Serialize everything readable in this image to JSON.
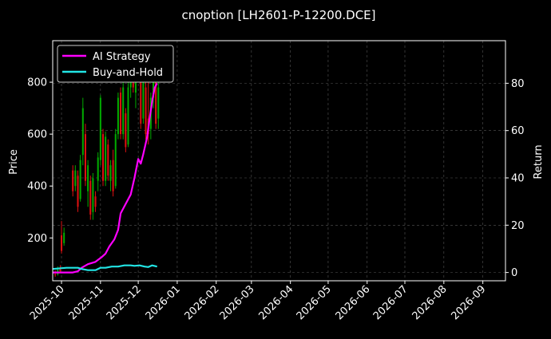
{
  "chart_data": {
    "type": "line",
    "title": "cnoption [LH2601-P-12200.DCE]",
    "xlabel": "",
    "ylabel": "Price",
    "y2label": "Return",
    "background": "#000000",
    "grid": true,
    "xlim": [
      "2025-09-24",
      "2026-09-19"
    ],
    "ylim": [
      35,
      960
    ],
    "y2lim": [
      -3.5,
      98
    ],
    "x_ticks": [
      "2025-10",
      "2025-11",
      "2025-12",
      "2026-01",
      "2026-02",
      "2026-03",
      "2026-04",
      "2026-05",
      "2026-06",
      "2026-07",
      "2026-08",
      "2026-09"
    ],
    "y_ticks": [
      200,
      400,
      600,
      800
    ],
    "y2_ticks": [
      0,
      20,
      40,
      60,
      80
    ],
    "legend": {
      "position": "top-left"
    },
    "colors": {
      "up": "#00aa00",
      "down": "#dd1111",
      "strategy": "#ff00ff",
      "buy_hold": "#22e5e5"
    },
    "series": [
      {
        "name": "AI Strategy",
        "axis": "right",
        "color": "#ff00ff",
        "points": [
          [
            "2025-09-24",
            0
          ],
          [
            "2025-10-01",
            0
          ],
          [
            "2025-10-10",
            0
          ],
          [
            "2025-10-14",
            0.5
          ],
          [
            "2025-10-17",
            2
          ],
          [
            "2025-10-22",
            3.5
          ],
          [
            "2025-10-28",
            4.5
          ],
          [
            "2025-11-02",
            6.5
          ],
          [
            "2025-11-05",
            8
          ],
          [
            "2025-11-08",
            11
          ],
          [
            "2025-11-12",
            14
          ],
          [
            "2025-11-15",
            18
          ],
          [
            "2025-11-17",
            25
          ],
          [
            "2025-11-20",
            28
          ],
          [
            "2025-11-25",
            33
          ],
          [
            "2025-11-28",
            40
          ],
          [
            "2025-12-01",
            48
          ],
          [
            "2025-12-03",
            46
          ],
          [
            "2025-12-05",
            50
          ],
          [
            "2025-12-08",
            57
          ],
          [
            "2025-12-10",
            65
          ],
          [
            "2025-12-12",
            72
          ],
          [
            "2025-12-14",
            78
          ],
          [
            "2025-12-16",
            80
          ]
        ]
      },
      {
        "name": "Buy-and-Hold",
        "axis": "right",
        "color": "#22e5e5",
        "points": [
          [
            "2025-09-24",
            1.5
          ],
          [
            "2025-10-05",
            2
          ],
          [
            "2025-10-14",
            2
          ],
          [
            "2025-10-17",
            1.5
          ],
          [
            "2025-10-22",
            1
          ],
          [
            "2025-10-28",
            1
          ],
          [
            "2025-11-01",
            2
          ],
          [
            "2025-11-05",
            2
          ],
          [
            "2025-11-10",
            2.5
          ],
          [
            "2025-11-15",
            2.5
          ],
          [
            "2025-11-20",
            3
          ],
          [
            "2025-11-25",
            3
          ],
          [
            "2025-11-28",
            2.8
          ],
          [
            "2025-12-02",
            3
          ],
          [
            "2025-12-06",
            2.5
          ],
          [
            "2025-12-09",
            2.3
          ],
          [
            "2025-12-12",
            3
          ],
          [
            "2025-12-16",
            2.5
          ]
        ]
      }
    ],
    "candles": [
      {
        "date": "2025-09-26",
        "open": 60,
        "high": 75,
        "low": 50,
        "close": 58
      },
      {
        "date": "2025-09-28",
        "open": 60,
        "high": 90,
        "low": 55,
        "close": 78
      },
      {
        "date": "2025-09-30",
        "open": 80,
        "high": 95,
        "low": 65,
        "close": 72
      },
      {
        "date": "2025-10-01",
        "open": 210,
        "high": 265,
        "low": 140,
        "close": 150
      },
      {
        "date": "2025-10-03",
        "open": 180,
        "high": 240,
        "low": 170,
        "close": 220
      },
      {
        "date": "2025-10-10",
        "open": 460,
        "high": 480,
        "low": 360,
        "close": 380
      },
      {
        "date": "2025-10-12",
        "open": 400,
        "high": 480,
        "low": 380,
        "close": 460
      },
      {
        "date": "2025-10-14",
        "open": 440,
        "high": 460,
        "low": 300,
        "close": 320
      },
      {
        "date": "2025-10-16",
        "open": 350,
        "high": 520,
        "low": 340,
        "close": 500
      },
      {
        "date": "2025-10-18",
        "open": 520,
        "high": 740,
        "low": 480,
        "close": 700
      },
      {
        "date": "2025-10-20",
        "open": 600,
        "high": 640,
        "low": 400,
        "close": 420
      },
      {
        "date": "2025-10-22",
        "open": 380,
        "high": 500,
        "low": 320,
        "close": 480
      },
      {
        "date": "2025-10-24",
        "open": 420,
        "high": 440,
        "low": 270,
        "close": 290
      },
      {
        "date": "2025-10-26",
        "open": 300,
        "high": 450,
        "low": 270,
        "close": 430
      },
      {
        "date": "2025-10-28",
        "open": 360,
        "high": 380,
        "low": 300,
        "close": 320
      },
      {
        "date": "2025-10-30",
        "open": 420,
        "high": 530,
        "low": 380,
        "close": 510
      },
      {
        "date": "2025-11-01",
        "open": 500,
        "high": 750,
        "low": 480,
        "close": 740
      },
      {
        "date": "2025-11-03",
        "open": 600,
        "high": 620,
        "low": 400,
        "close": 420
      },
      {
        "date": "2025-11-05",
        "open": 420,
        "high": 610,
        "low": 400,
        "close": 590
      },
      {
        "date": "2025-11-07",
        "open": 560,
        "high": 580,
        "low": 420,
        "close": 440
      },
      {
        "date": "2025-11-09",
        "open": 420,
        "high": 500,
        "low": 380,
        "close": 480
      },
      {
        "date": "2025-11-11",
        "open": 500,
        "high": 540,
        "low": 360,
        "close": 380
      },
      {
        "date": "2025-11-13",
        "open": 400,
        "high": 620,
        "low": 390,
        "close": 600
      },
      {
        "date": "2025-11-15",
        "open": 600,
        "high": 760,
        "low": 580,
        "close": 740
      },
      {
        "date": "2025-11-17",
        "open": 760,
        "high": 780,
        "low": 580,
        "close": 600
      },
      {
        "date": "2025-11-19",
        "open": 600,
        "high": 800,
        "low": 580,
        "close": 780
      },
      {
        "date": "2025-11-21",
        "open": 680,
        "high": 700,
        "low": 530,
        "close": 550
      },
      {
        "date": "2025-11-23",
        "open": 560,
        "high": 800,
        "low": 550,
        "close": 780
      },
      {
        "date": "2025-11-25",
        "open": 780,
        "high": 900,
        "low": 740,
        "close": 880
      },
      {
        "date": "2025-11-27",
        "open": 840,
        "high": 860,
        "low": 760,
        "close": 780
      },
      {
        "date": "2025-11-29",
        "open": 760,
        "high": 830,
        "low": 700,
        "close": 820
      },
      {
        "date": "2025-12-01",
        "open": 820,
        "high": 900,
        "low": 800,
        "close": 880
      },
      {
        "date": "2025-12-03",
        "open": 860,
        "high": 870,
        "low": 620,
        "close": 640
      },
      {
        "date": "2025-12-05",
        "open": 660,
        "high": 820,
        "low": 640,
        "close": 800
      },
      {
        "date": "2025-12-07",
        "open": 780,
        "high": 800,
        "low": 580,
        "close": 600
      },
      {
        "date": "2025-12-09",
        "open": 660,
        "high": 940,
        "low": 560,
        "close": 600
      },
      {
        "date": "2025-12-11",
        "open": 620,
        "high": 760,
        "low": 580,
        "close": 740
      },
      {
        "date": "2025-12-13",
        "open": 740,
        "high": 880,
        "low": 700,
        "close": 860
      },
      {
        "date": "2025-12-15",
        "open": 860,
        "high": 880,
        "low": 620,
        "close": 640
      },
      {
        "date": "2025-12-17",
        "open": 660,
        "high": 800,
        "low": 620,
        "close": 780
      }
    ]
  }
}
